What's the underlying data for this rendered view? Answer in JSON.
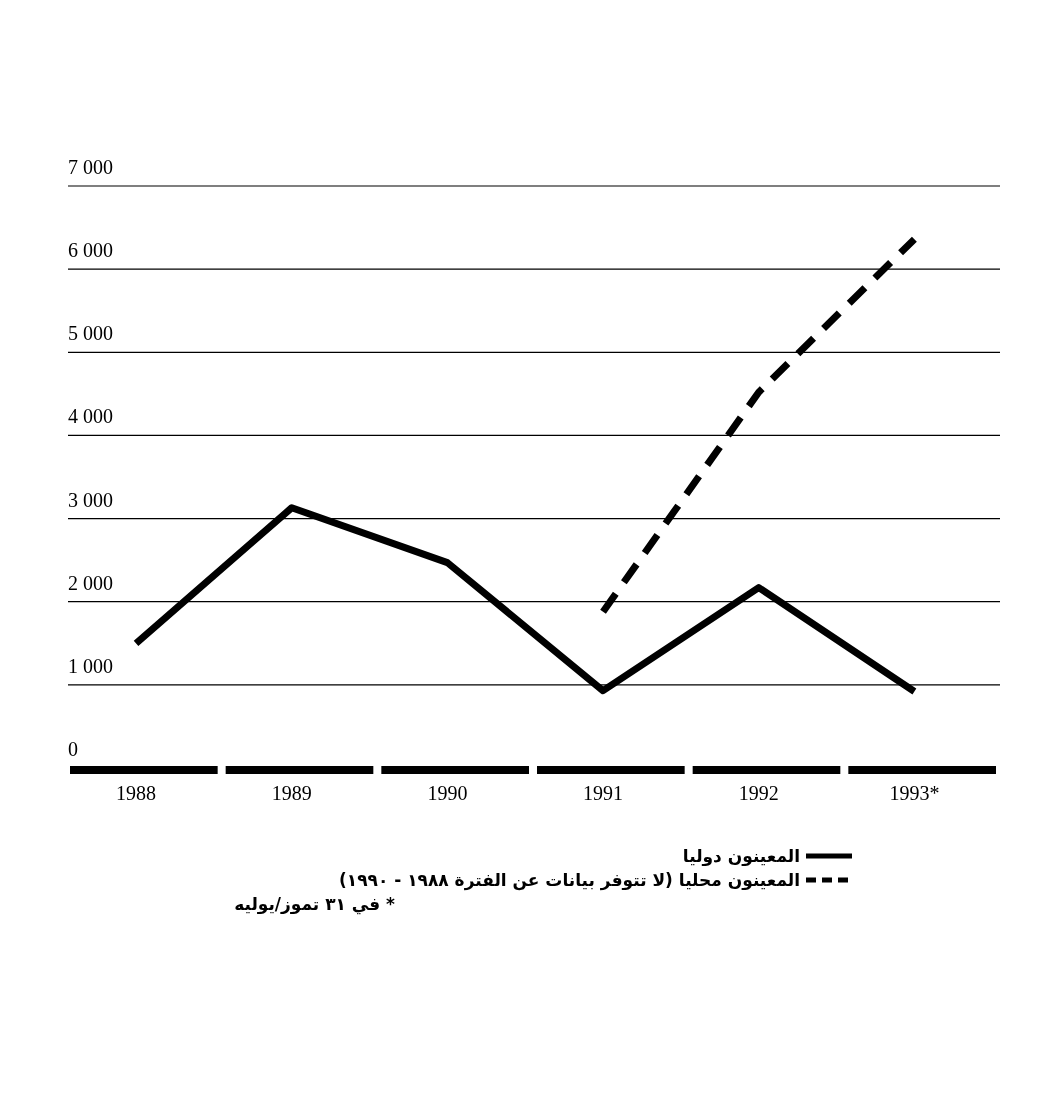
{
  "chart_data": {
    "type": "line",
    "categories": [
      "1988",
      "1989",
      "1990",
      "1991",
      "1992",
      "1993*"
    ],
    "series": [
      {
        "name": "المعينون دوليا",
        "color": "#000000",
        "line_style": "solid",
        "values": [
          1500,
          3130,
          2470,
          930,
          2170,
          920
        ]
      },
      {
        "name": "المعينون محليا (لا تتوفر بيانات عن الفترة ١٩٨٨ - ١٩٩٠)",
        "color": "#000000",
        "line_style": "dashed",
        "values": [
          null,
          null,
          null,
          1880,
          4520,
          6360
        ]
      }
    ],
    "ylim": [
      0,
      7000
    ],
    "yticks": [
      {
        "value": 0,
        "label": "0"
      },
      {
        "value": 1000,
        "label": "1 000"
      },
      {
        "value": 2000,
        "label": "2 000"
      },
      {
        "value": 3000,
        "label": "3 000"
      },
      {
        "value": 4000,
        "label": "4 000"
      },
      {
        "value": 5000,
        "label": "5 000"
      },
      {
        "value": 6000,
        "label": "6 000"
      },
      {
        "value": 7000,
        "label": "7 000"
      }
    ],
    "grid": "y",
    "legend": "bottom",
    "marker": "none",
    "annotations": [
      "* في ٣١ تموز/يوليه"
    ]
  }
}
